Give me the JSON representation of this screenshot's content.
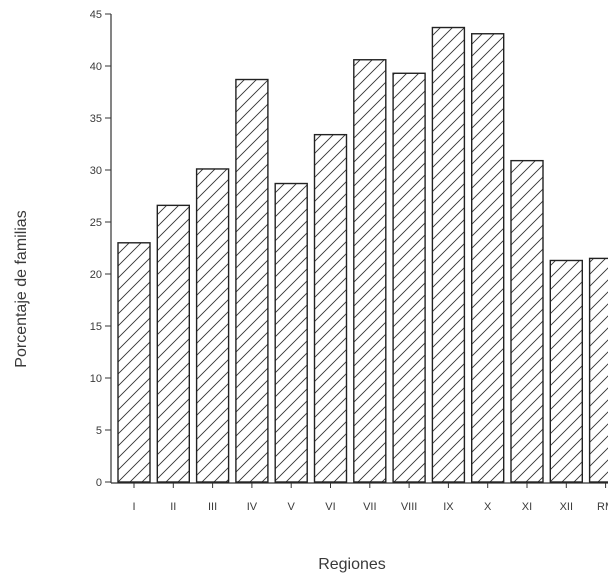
{
  "chart_data": {
    "type": "bar",
    "xlabel": "Regiones",
    "ylabel": "Porcentaje de familias",
    "ylim": [
      0,
      45
    ],
    "yticks": [
      0,
      5,
      10,
      15,
      20,
      25,
      30,
      35,
      40,
      45
    ],
    "categories": [
      "I",
      "II",
      "III",
      "IV",
      "V",
      "VI",
      "VII",
      "VIII",
      "IX",
      "X",
      "XI",
      "XII",
      "RM"
    ],
    "values": [
      23.0,
      26.6,
      30.1,
      38.7,
      28.7,
      33.4,
      40.6,
      39.3,
      43.7,
      43.1,
      30.9,
      21.3,
      21.5
    ],
    "bar_pattern": "diagonal-hatch",
    "bar_fill": "#ffffff",
    "bar_stroke": "#222222",
    "grid": false,
    "legend": "none"
  }
}
